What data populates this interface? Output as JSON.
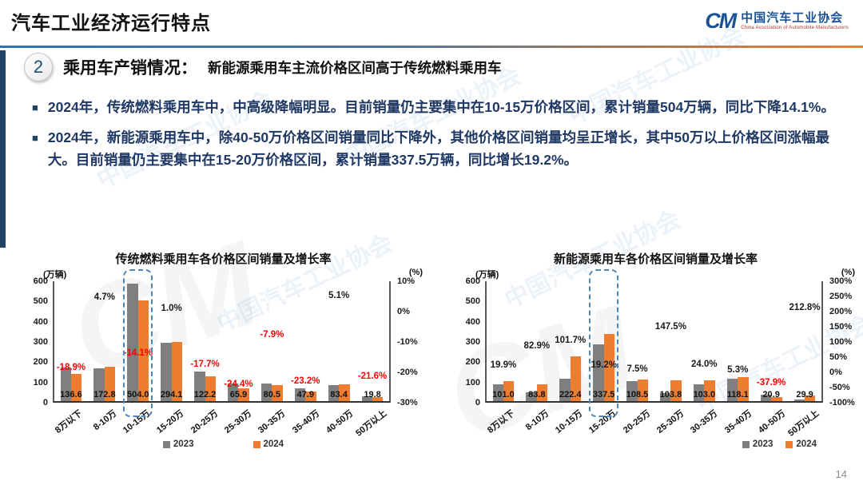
{
  "header": {
    "title": "汽车工业经济运行特点",
    "logo": {
      "mark": "CM",
      "cn": "中国汽车工业协会",
      "en": "China Association of Automobile Manufacturers"
    }
  },
  "section": {
    "number": "2",
    "heading": "乘用车产销情况：",
    "subheading": "新能源乘用车主流价格区间高于传统燃料乘用车"
  },
  "bullets": [
    "2024年，传统燃料乘用车中，中高级降幅明显。目前销量仍主要集中在10-15万价格区间，累计销量504万辆，同比下降14.1%。",
    "2024年，新能源乘用车中，除40-50万价格区间销量同比下降外，其他价格区间销量均呈正增长，其中50万以上价格区间涨幅最大。目前销量仍主要集中在15-20万价格区间，累计销量337.5万辆，同比增长19.2%。"
  ],
  "watermark": "中国汽车工业协会",
  "page_number": "14",
  "colors": {
    "bar_2023": "#7f7f7f",
    "bar_2024": "#ED7D31",
    "negative_label": "#fe0000",
    "positive_label": "#1a1a1a",
    "highlight_border": "#4d87b8",
    "accent_navy": "#1F4466",
    "brand_blue": "#1A5296",
    "divider_blue": "#2E74B5",
    "divider_orange": "#ED7D31"
  },
  "chart_data": [
    {
      "type": "bar",
      "title": "传统燃料乘用车各价格区间销量及增长率",
      "unit_left": "(万辆)",
      "unit_right": "(%)",
      "categories": [
        "8万以下",
        "8-10万",
        "10-15万",
        "15-20万",
        "20-25万",
        "25-30万",
        "30-35万",
        "35-40万",
        "40-50万",
        "50万以上"
      ],
      "series": [
        {
          "name": "2023",
          "color": "#7f7f7f",
          "values": [
            168.4,
            165.0,
            586.7,
            291.2,
            148.5,
            87.2,
            87.4,
            62.4,
            79.4,
            25.3
          ]
        },
        {
          "name": "2024",
          "color": "#ED7D31",
          "values": [
            136.6,
            172.8,
            504.0,
            294.1,
            122.2,
            65.9,
            80.5,
            47.9,
            83.4,
            19.8
          ]
        }
      ],
      "value_labels": [
        "136.6",
        "172.8",
        "504.0",
        "294.1",
        "122.2",
        "65.9",
        "80.5",
        "47.9",
        "83.4",
        "19.8"
      ],
      "growth_labels": [
        {
          "text": "-18.9%",
          "value": -18.9
        },
        {
          "text": "4.7%",
          "value": 4.7
        },
        {
          "text": "-14.1%",
          "value": -14.1
        },
        {
          "text": "1.0%",
          "value": 1.0
        },
        {
          "text": "-17.7%",
          "value": -17.7
        },
        {
          "text": "-24.4%",
          "value": -24.4
        },
        {
          "text": "-7.9%",
          "value": -7.9
        },
        {
          "text": "-23.2%",
          "value": -23.2
        },
        {
          "text": "5.1%",
          "value": 5.1
        },
        {
          "text": "-21.6%",
          "value": -21.6
        }
      ],
      "left_axis": {
        "min": 0,
        "max": 600,
        "ticks": [
          "600",
          "500",
          "400",
          "300",
          "200",
          "100",
          "0"
        ]
      },
      "right_axis": {
        "min": -30,
        "max": 10,
        "ticks": [
          "10%",
          "0%",
          "-10%",
          "-20%",
          "-30%"
        ]
      },
      "highlight_index": 2,
      "legend": [
        "2023",
        "2024"
      ]
    },
    {
      "type": "bar",
      "title": "新能源乘用车各价格区间销量及增长率",
      "unit_left": "(万辆)",
      "unit_right": "(%)",
      "categories": [
        "8万以下",
        "8-10万",
        "10-15万",
        "15-20万",
        "20-25万",
        "25-30万",
        "30-35万",
        "35-40万",
        "40-50万",
        "50万以上"
      ],
      "series": [
        {
          "name": "2023",
          "color": "#7f7f7f",
          "values": [
            84.2,
            45.8,
            110.3,
            283.1,
            100.9,
            41.9,
            83.1,
            112.2,
            33.7,
            9.6
          ]
        },
        {
          "name": "2024",
          "color": "#ED7D31",
          "values": [
            101.0,
            83.8,
            222.4,
            337.5,
            108.5,
            103.8,
            103.0,
            118.1,
            20.9,
            29.9
          ]
        }
      ],
      "value_labels": [
        "101.0",
        "83.8",
        "222.4",
        "337.5",
        "108.5",
        "103.8",
        "103.0",
        "118.1",
        "20.9",
        "29.9"
      ],
      "growth_labels": [
        {
          "text": "19.9%",
          "value": 19.9
        },
        {
          "text": "82.9%",
          "value": 82.9
        },
        {
          "text": "101.7%",
          "value": 101.7
        },
        {
          "text": "19.2%",
          "value": 19.2
        },
        {
          "text": "7.5%",
          "value": 7.5
        },
        {
          "text": "147.5%",
          "value": 147.5
        },
        {
          "text": "24.0%",
          "value": 24.0
        },
        {
          "text": "5.3%",
          "value": 5.3
        },
        {
          "text": "-37.9%",
          "value": -37.9
        },
        {
          "text": "212.8%",
          "value": 212.8
        }
      ],
      "left_axis": {
        "min": 0,
        "max": 600,
        "ticks": [
          "600",
          "500",
          "400",
          "300",
          "200",
          "100",
          "0"
        ]
      },
      "right_axis": {
        "min": -100,
        "max": 300,
        "ticks": [
          "300%",
          "250%",
          "200%",
          "150%",
          "100%",
          "50%",
          "0%",
          "-50%",
          "-100%"
        ]
      },
      "highlight_index": 3,
      "legend": [
        "2023",
        "2024"
      ]
    }
  ]
}
